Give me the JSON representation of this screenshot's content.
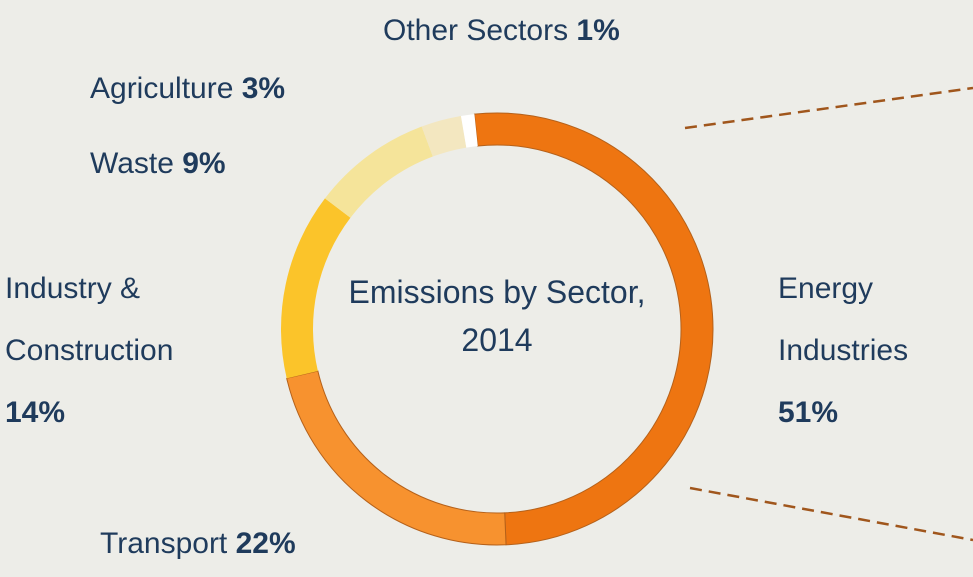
{
  "chart_data": {
    "type": "donut",
    "title": "Emissions by Sector, 2014",
    "categories": [
      "Energy Industries",
      "Transport",
      "Industry & Construction",
      "Waste",
      "Agriculture",
      "Other Sectors"
    ],
    "values": [
      51,
      22,
      14,
      9,
      3,
      1
    ],
    "value_labels": [
      "51%",
      "22%",
      "14%",
      "9%",
      "3%",
      "1%"
    ],
    "colors": [
      "#ee7511",
      "#f7922f",
      "#fbc42a",
      "#f5e49a",
      "#f3e7c0",
      "#ffffff"
    ]
  }
}
